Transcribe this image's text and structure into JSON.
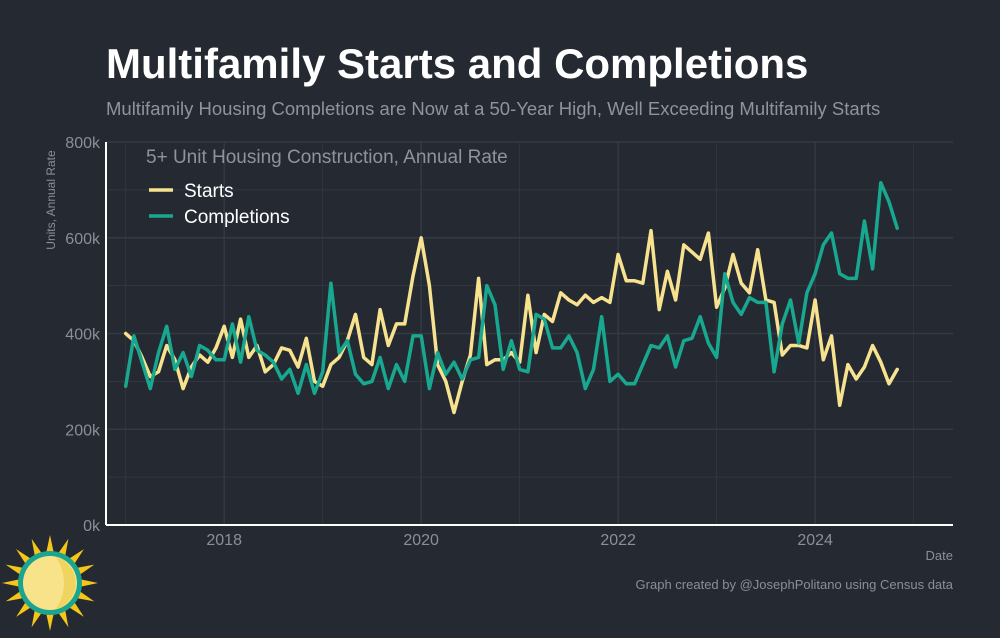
{
  "chart_data": {
    "type": "line",
    "title": "Multifamily Starts and Completions",
    "subtitle": "Multifamily Housing Completions are Now at a 50-Year High, Well Exceeding Multifamily Starts",
    "inner_title": "5+ Unit Housing Construction, Annual Rate",
    "xlabel": "Date",
    "ylabel": "Units, Annual Rate",
    "credit": "Graph created by @JosephPolitano using Census data",
    "ylim": [
      0,
      800000
    ],
    "xlim": [
      2016.8,
      2025.4
    ],
    "x_ticks": [
      2018,
      2020,
      2022,
      2024
    ],
    "x_tick_labels": [
      "2018",
      "2020",
      "2022",
      "2024"
    ],
    "y_ticks": [
      0,
      200000,
      400000,
      600000,
      800000
    ],
    "y_tick_labels": [
      "0k",
      "200k",
      "400k",
      "600k",
      "800k"
    ],
    "grid": true,
    "legend_position": "top-left",
    "x_start": "2017-01",
    "x_step": "month",
    "series": [
      {
        "name": "Starts",
        "color": "#f7e38f",
        "values": [
          400000,
          385000,
          350000,
          310000,
          320000,
          375000,
          345000,
          285000,
          330000,
          355000,
          340000,
          370000,
          415000,
          350000,
          430000,
          350000,
          375000,
          320000,
          335000,
          370000,
          365000,
          330000,
          390000,
          300000,
          290000,
          335000,
          350000,
          385000,
          440000,
          350000,
          335000,
          450000,
          375000,
          420000,
          420000,
          520000,
          600000,
          500000,
          335000,
          300000,
          235000,
          300000,
          355000,
          515000,
          335000,
          345000,
          345000,
          360000,
          340000,
          480000,
          360000,
          440000,
          425000,
          485000,
          470000,
          460000,
          480000,
          465000,
          475000,
          465000,
          565000,
          510000,
          510000,
          505000,
          615000,
          450000,
          530000,
          470000,
          585000,
          570000,
          555000,
          610000,
          455000,
          495000,
          565000,
          505000,
          485000,
          575000,
          470000,
          465000,
          355000,
          375000,
          375000,
          370000,
          470000,
          345000,
          395000,
          250000,
          335000,
          305000,
          330000,
          375000,
          340000,
          295000,
          325000
        ]
      },
      {
        "name": "Completions",
        "color": "#18a78f",
        "values": [
          290000,
          395000,
          340000,
          285000,
          360000,
          415000,
          325000,
          360000,
          310000,
          375000,
          365000,
          345000,
          345000,
          420000,
          340000,
          435000,
          365000,
          355000,
          340000,
          305000,
          325000,
          275000,
          335000,
          275000,
          320000,
          505000,
          360000,
          385000,
          315000,
          295000,
          300000,
          350000,
          285000,
          335000,
          300000,
          395000,
          395000,
          285000,
          360000,
          315000,
          340000,
          305000,
          345000,
          350000,
          500000,
          460000,
          325000,
          385000,
          325000,
          320000,
          440000,
          430000,
          370000,
          370000,
          395000,
          360000,
          285000,
          325000,
          435000,
          300000,
          315000,
          295000,
          295000,
          335000,
          375000,
          370000,
          395000,
          330000,
          385000,
          390000,
          435000,
          380000,
          350000,
          525000,
          465000,
          440000,
          475000,
          465000,
          465000,
          320000,
          420000,
          470000,
          380000,
          485000,
          525000,
          585000,
          610000,
          525000,
          515000,
          515000,
          635000,
          535000,
          715000,
          675000,
          620000
        ]
      }
    ]
  },
  "colors": {
    "background": "#252a32",
    "grid": "#343a44",
    "axis": "#ffffff",
    "title": "#ffffff",
    "subtitle": "#8f949b",
    "tick_label": "#8a8f96",
    "legend_text": "#ffffff",
    "logo_rays": "#f5c518",
    "logo_ring": "#1aa591",
    "logo_face": "#f8e38a"
  }
}
